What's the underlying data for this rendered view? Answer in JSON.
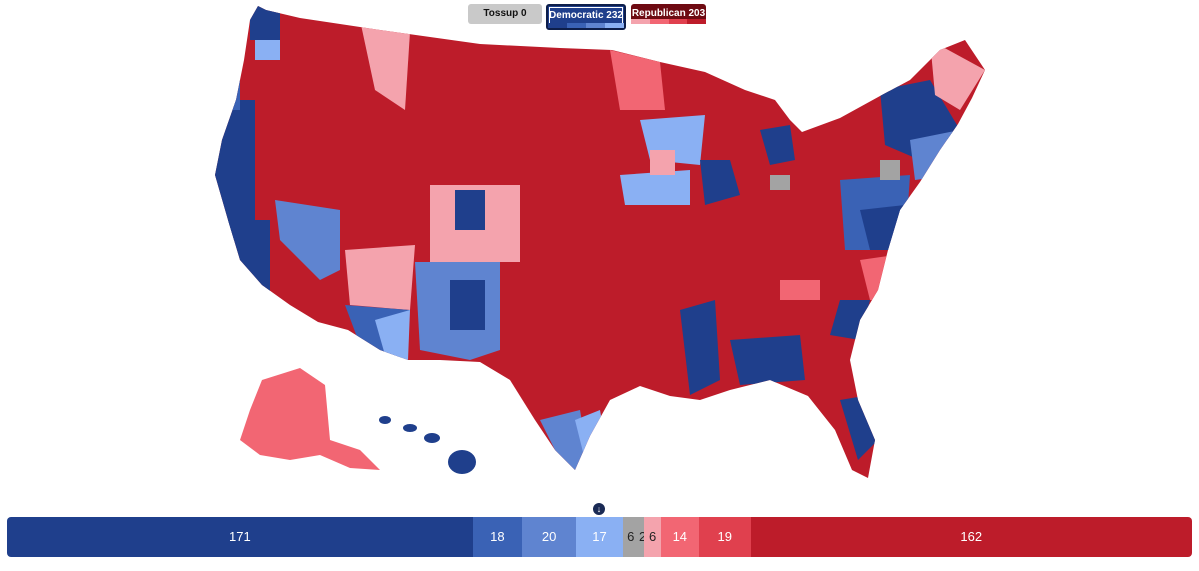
{
  "legend": {
    "tossup": "Tossup 0",
    "democratic": "Democratic 232",
    "republican": "Republican 203"
  },
  "colors": {
    "safe_dem": "#1f3f8c",
    "likely_dem": "#3a62b5",
    "lean_dem": "#5f84d0",
    "tilt_dem": "#8ab0f3",
    "tossup": "#a3a3a3",
    "tilt_rep": "#f4a3ad",
    "lean_rep": "#f26673",
    "likely_rep": "#e0404e",
    "safe_rep": "#bd1c2a"
  },
  "rating_bar": [
    {
      "category": "safe_dem",
      "value": "171",
      "seats": 171
    },
    {
      "category": "likely_dem",
      "value": "18",
      "seats": 18
    },
    {
      "category": "lean_dem",
      "value": "20",
      "seats": 20
    },
    {
      "category": "tilt_dem",
      "value": "17",
      "seats": 17
    },
    {
      "category": "tossup_dem_side",
      "value": "6",
      "seats": 6
    },
    {
      "category": "tossup_mid",
      "value": "2",
      "seats": 2
    },
    {
      "category": "tilt_rep",
      "value": "6",
      "seats": 6
    },
    {
      "category": "lean_rep",
      "value": "14",
      "seats": 14
    },
    {
      "category": "likely_rep",
      "value": "19",
      "seats": 19
    },
    {
      "category": "safe_rep",
      "value": "162",
      "seats": 162
    }
  ],
  "midpoint_icon": "arrow-down-icon"
}
